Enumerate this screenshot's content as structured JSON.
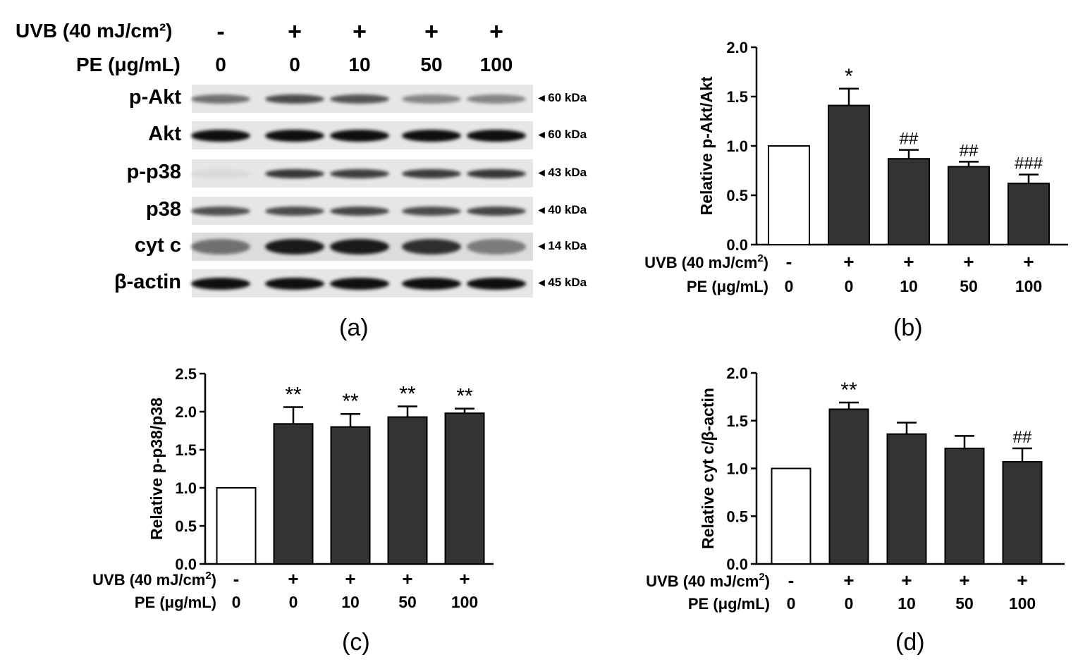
{
  "panel_a": {
    "letter": "(a)",
    "header": {
      "uvb_label": "UVB (40 mJ/cm²)",
      "pe_label": "PE (μg/mL)",
      "uvb_values": [
        "-",
        "+",
        "+",
        "+",
        "+"
      ],
      "pe_values": [
        "0",
        "0",
        "10",
        "50",
        "100"
      ]
    },
    "blots": [
      {
        "label": "p-Akt",
        "size": "◂ 60 kDa",
        "intensity": [
          0.55,
          0.72,
          0.68,
          0.45,
          0.45
        ]
      },
      {
        "label": "Akt",
        "size": "◂ 60 kDa",
        "intensity": [
          1.0,
          1.0,
          1.0,
          1.0,
          1.0
        ]
      },
      {
        "label": "p-p38",
        "size": "◂ 43 kDa",
        "intensity": [
          0.06,
          0.82,
          0.78,
          0.8,
          0.82
        ]
      },
      {
        "label": "p38",
        "size": "◂ 40 kDa",
        "intensity": [
          0.7,
          0.72,
          0.75,
          0.72,
          0.75
        ]
      },
      {
        "label": "cyt c",
        "size": "◂ 14 kDa",
        "intensity": [
          0.55,
          0.95,
          0.95,
          0.85,
          0.5
        ]
      },
      {
        "label": "β-actin",
        "size": "◂ 45 kDa",
        "intensity": [
          1.0,
          1.0,
          1.0,
          1.0,
          1.0
        ]
      }
    ]
  },
  "chart_data": [
    {
      "id": "b",
      "letter": "(b)",
      "type": "bar",
      "ylabel": "Relative p-Akt/Akt",
      "ylim": [
        0,
        2.0
      ],
      "yticks": [
        "0.0",
        "0.5",
        "1.0",
        "1.5",
        "2.0"
      ],
      "uvb_label": "UVB (40 mJ/cm",
      "uvb_sup": "2",
      "pe_label": "PE (μg/mL)",
      "uvb_values": [
        "-",
        "+",
        "+",
        "+",
        "+"
      ],
      "categories": [
        "0",
        "0",
        "10",
        "50",
        "100"
      ],
      "values": [
        1.0,
        1.41,
        0.87,
        0.79,
        0.62
      ],
      "errors": [
        0,
        0.17,
        0.09,
        0.05,
        0.09
      ],
      "bar_colors": [
        "#ffffff",
        "#333333",
        "#333333",
        "#333333",
        "#333333"
      ],
      "annotations": [
        "",
        "*",
        "##",
        "##",
        "###"
      ]
    },
    {
      "id": "c",
      "letter": "(c)",
      "type": "bar",
      "ylabel": "Relative p-p38/p38",
      "ylim": [
        0,
        2.5
      ],
      "yticks": [
        "0.0",
        "0.5",
        "1.0",
        "1.5",
        "2.0",
        "2.5"
      ],
      "uvb_label": "UVB (40 mJ/cm",
      "uvb_sup": "2",
      "pe_label": "PE (μg/mL)",
      "uvb_values": [
        "-",
        "+",
        "+",
        "+",
        "+"
      ],
      "categories": [
        "0",
        "0",
        "10",
        "50",
        "100"
      ],
      "values": [
        1.0,
        1.84,
        1.8,
        1.93,
        1.98
      ],
      "errors": [
        0,
        0.22,
        0.17,
        0.14,
        0.06
      ],
      "bar_colors": [
        "#ffffff",
        "#333333",
        "#333333",
        "#333333",
        "#333333"
      ],
      "annotations": [
        "",
        "**",
        "**",
        "**",
        "**"
      ]
    },
    {
      "id": "d",
      "letter": "(d)",
      "type": "bar",
      "ylabel": "Relative cyt c/β-actin",
      "ylim": [
        0,
        2.0
      ],
      "yticks": [
        "0.0",
        "0.5",
        "1.0",
        "1.5",
        "2.0"
      ],
      "uvb_label": "UVB (40 mJ/cm",
      "uvb_sup": "2",
      "pe_label": "PE (μg/mL)",
      "uvb_values": [
        "-",
        "+",
        "+",
        "+",
        "+"
      ],
      "categories": [
        "0",
        "0",
        "10",
        "50",
        "100"
      ],
      "values": [
        1.0,
        1.62,
        1.36,
        1.21,
        1.07
      ],
      "errors": [
        0,
        0.07,
        0.12,
        0.13,
        0.14
      ],
      "bar_colors": [
        "#ffffff",
        "#333333",
        "#333333",
        "#333333",
        "#333333"
      ],
      "annotations": [
        "",
        "**",
        "",
        "",
        "##"
      ]
    }
  ]
}
